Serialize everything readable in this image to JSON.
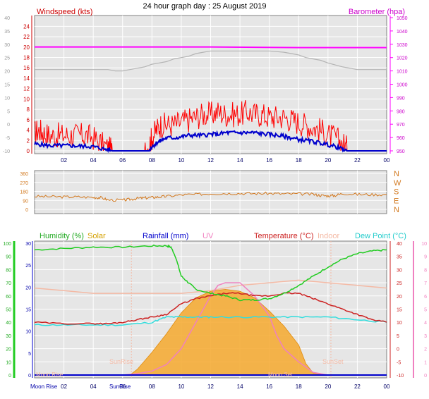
{
  "header_title": "24 hour graph day : 25 August 2019",
  "x_tick_labels": [
    "02",
    "04",
    "06",
    "08",
    "10",
    "12",
    "14",
    "16",
    "18",
    "20",
    "22",
    "00"
  ],
  "panel_wind": {
    "left_label": "Windspeed (kts)",
    "right_label": "Barometer (hpa)",
    "outer_ticks": [
      "40",
      "35",
      "30",
      "25",
      "20",
      "15",
      "10",
      "5",
      "0",
      "-5",
      "-10"
    ],
    "inner_ticks": [
      "24",
      "22",
      "20",
      "18",
      "16",
      "14",
      "12",
      "10",
      "8",
      "6",
      "4",
      "2",
      "0"
    ],
    "baro_ticks": [
      "1050",
      "1040",
      "1030",
      "1020",
      "1010",
      "1000",
      "990",
      "980",
      "970",
      "960",
      "950"
    ],
    "colors": {
      "wind_avg": "#0000cc",
      "wind_gust": "#ff0000",
      "barometer": "#ff00ff",
      "indoor_trace": "#b4b4b4"
    }
  },
  "panel_dir": {
    "left_ticks": [
      "360",
      "270",
      "180",
      "90",
      "0"
    ],
    "compass_labels": [
      "N",
      "W",
      "S",
      "E",
      "N"
    ],
    "colors": {
      "direction": "#d2781e",
      "compass": "#d2781e"
    }
  },
  "panel_temp": {
    "legend": {
      "humidity": "Humidity (%)",
      "solar": "Solar",
      "rainfall": "Rainfall (mm)",
      "uv": "UV",
      "temperature": "Temperature (°C)",
      "indoor": "Indoor",
      "dew_point": "Dew Point (°C)"
    },
    "humidity_ticks": [
      "100",
      "90",
      "80",
      "70",
      "60",
      "50",
      "40",
      "30",
      "20",
      "10",
      "0"
    ],
    "rain_ticks": [
      "30",
      "25",
      "20",
      "15",
      "10",
      "5",
      "0"
    ],
    "temp_ticks": [
      "40",
      "35",
      "30",
      "25",
      "20",
      "15",
      "10",
      "5",
      "0",
      "-5",
      "-10"
    ],
    "uv_ticks": [
      "10",
      "9",
      "8",
      "7",
      "6",
      "5",
      "4",
      "3",
      "2",
      "1",
      "0"
    ],
    "sun_rise": "SunRise",
    "sun_set": "SunSet",
    "moon_rise": "Moon Rise",
    "moon_set_top": "Moon Set",
    "moon_rise_bottom": "Moon Rise",
    "sun_rise_bottom": "SunRise",
    "colors": {
      "humidity": "#22cc22",
      "solar": "#f5a82d",
      "rainfall": "#0000cc",
      "uv": "#f080c0",
      "temperature": "#cc2020",
      "indoor": "#f4b9a4",
      "dew_point": "#33dddd"
    }
  },
  "chart_data": [
    {
      "type": "line",
      "title": "24 hour graph day : 25 August 2019",
      "ylabel": "Windspeed (kts)",
      "y2label": "Barometer (hpa)",
      "x_unit": "hour",
      "ylim": [
        0,
        25
      ],
      "y2lim": [
        950,
        1050
      ],
      "series": [
        {
          "name": "Windspeed (kts)",
          "role": "gust",
          "x": [
            0,
            0.3,
            0.6,
            1,
            1.5,
            2,
            2.5,
            3,
            3.5,
            4,
            4.5,
            5,
            5.3,
            5.5,
            6,
            7,
            7.5,
            7.8,
            8,
            8.3,
            8.6,
            9,
            9.5,
            10,
            10.5,
            11,
            11.5,
            12,
            12.5,
            13,
            13.5,
            14,
            14.5,
            15,
            15.5,
            16,
            16.5,
            17,
            17.5,
            18,
            18.5,
            19,
            19.5,
            20,
            20.5,
            21,
            21.3,
            21.5,
            22,
            23,
            24
          ],
          "values": [
            3.5,
            4,
            3.5,
            3,
            3,
            3,
            3,
            3,
            3,
            2.5,
            1.5,
            0.5,
            0,
            0,
            0,
            0,
            0,
            1,
            2.5,
            4,
            5,
            5,
            5,
            5.5,
            6,
            6.5,
            7,
            7,
            7.5,
            7,
            7,
            7,
            7.5,
            7,
            7,
            6.5,
            6.5,
            6.5,
            6,
            5.5,
            5,
            4.5,
            4,
            3,
            2.5,
            1.5,
            0.5,
            0,
            0,
            0,
            0
          ]
        },
        {
          "name": "",
          "role": "average",
          "x": [
            0,
            0.5,
            1,
            1.5,
            2,
            2.5,
            3,
            3.5,
            4,
            4.5,
            5,
            5.3,
            5.5,
            6,
            7,
            7.5,
            7.8,
            8,
            8.3,
            8.6,
            9,
            9.5,
            10,
            10.5,
            11,
            11.5,
            12,
            12.5,
            13,
            13.5,
            14,
            14.5,
            15,
            15.5,
            16,
            16.5,
            17,
            17.5,
            18,
            18.5,
            19,
            19.5,
            20,
            20.5,
            21,
            21.3,
            21.5,
            22,
            23,
            24
          ],
          "values": [
            1.3,
            1.2,
            1,
            1,
            1,
            1,
            0.9,
            0.9,
            0.8,
            0.5,
            0.2,
            0,
            0,
            0,
            0,
            0,
            0,
            0.8,
            1.5,
            2,
            2.5,
            2.5,
            2.7,
            3,
            3,
            3,
            3.2,
            3.2,
            3.5,
            3.5,
            3.5,
            3.5,
            3.5,
            3.3,
            3.2,
            3,
            2.8,
            2.5,
            2.2,
            2,
            1.8,
            1.5,
            1.2,
            0.8,
            0.3,
            0,
            0,
            0,
            0,
            0
          ]
        },
        {
          "name": "Barometer (hpa)",
          "axis": "right",
          "x": [
            0,
            6,
            12,
            18,
            24
          ],
          "values": [
            1028,
            1028,
            1028,
            1027.5,
            1027.5
          ]
        },
        {
          "name": "",
          "role": "grey",
          "x": [
            0,
            1,
            2,
            3,
            4,
            5,
            5.5,
            6,
            6.5,
            7,
            7.5,
            8,
            8.5,
            9,
            9.5,
            10,
            10.5,
            11,
            11.5,
            12,
            12.5,
            13,
            14,
            15,
            16,
            17,
            17.5,
            18,
            18.5,
            19,
            19.5,
            20,
            21,
            22,
            23,
            24
          ],
          "values": [
            1011,
            1011,
            1011,
            1011,
            1011,
            1011,
            1010,
            1010,
            1011,
            1012,
            1013,
            1015,
            1016,
            1017,
            1019,
            1020,
            1021,
            1023,
            1024,
            1025,
            1025,
            1025,
            1025,
            1025,
            1025,
            1024,
            1023,
            1022,
            1020,
            1019,
            1018,
            1016,
            1013,
            1011,
            1011,
            1011
          ]
        }
      ]
    },
    {
      "type": "scatter",
      "ylabel": "",
      "x_unit": "hour",
      "ylim": [
        0,
        360
      ],
      "series": [
        {
          "name": "",
          "x": [
            0,
            1,
            2,
            3,
            4,
            4.5,
            5,
            6,
            6.5,
            7,
            7.5,
            8,
            8.5,
            9,
            10,
            11,
            12,
            13,
            14,
            15,
            16,
            17,
            18,
            19,
            19.5,
            20,
            20.5,
            21,
            22,
            23,
            24
          ],
          "values": [
            130,
            128,
            125,
            125,
            120,
            118,
            95,
            92,
            100,
            110,
            115,
            120,
            125,
            130,
            145,
            150,
            158,
            160,
            160,
            158,
            160,
            155,
            155,
            150,
            140,
            135,
            140,
            160,
            150,
            148,
            148
          ]
        }
      ]
    },
    {
      "type": "line",
      "x_unit": "hour",
      "ylim": [
        -10,
        40
      ],
      "series": [
        {
          "name": "Humidity (%)",
          "axis": "humidity",
          "x": [
            0,
            2,
            4,
            6,
            8,
            9,
            9.3,
            9.6,
            10,
            10.5,
            11,
            12,
            13,
            14,
            15,
            16,
            17,
            18,
            19,
            20,
            21,
            22,
            23,
            24
          ],
          "values": [
            95,
            96,
            97,
            97,
            98,
            98,
            97,
            90,
            75,
            70,
            65,
            62,
            60,
            57,
            57,
            58,
            62,
            68,
            75,
            82,
            88,
            92,
            94,
            95
          ]
        },
        {
          "name": "Temperature (°C)",
          "x": [
            0,
            2,
            4,
            5,
            6,
            7,
            8,
            9,
            10,
            11,
            12,
            13,
            14,
            15,
            16,
            17,
            18,
            19,
            20,
            21,
            22,
            23,
            24
          ],
          "values": [
            10,
            9.5,
            9.5,
            9.5,
            10,
            11,
            12,
            13,
            17,
            19,
            20,
            21,
            21,
            20,
            20,
            21,
            21,
            19,
            17,
            15,
            13,
            11,
            10
          ]
        },
        {
          "name": "Dew Point (°C)",
          "x": [
            0,
            2,
            4,
            6,
            8,
            9,
            10,
            11,
            12,
            14,
            16,
            18,
            20,
            22,
            24
          ],
          "values": [
            9,
            9,
            9,
            9,
            10,
            12,
            12,
            12,
            12,
            12,
            12,
            12,
            12,
            11,
            10
          ]
        },
        {
          "name": "Indoor",
          "x": [
            0,
            2,
            4,
            6,
            8,
            10,
            12,
            14,
            16,
            18,
            20,
            22,
            24
          ],
          "values": [
            23,
            22,
            21,
            21,
            21,
            21,
            22,
            24,
            25,
            26,
            25,
            24,
            23
          ]
        },
        {
          "name": "UV",
          "axis": "uv",
          "x": [
            6,
            7,
            8,
            9,
            10,
            11,
            12,
            12.5,
            13,
            14,
            15,
            16,
            16.5,
            17,
            18,
            19,
            20
          ],
          "values": [
            0,
            0.1,
            0.3,
            0.8,
            2,
            4,
            6,
            6.8,
            7,
            7,
            6,
            4.5,
            3,
            2,
            1,
            0.2,
            0
          ]
        },
        {
          "name": "Solar",
          "axis": "solar",
          "x": [
            6.5,
            7,
            8,
            9,
            10,
            11,
            12,
            13,
            14,
            15,
            16,
            17,
            18,
            18.5,
            19,
            20
          ],
          "values": [
            0,
            30,
            120,
            220,
            330,
            410,
            445,
            455,
            445,
            410,
            340,
            260,
            160,
            60,
            10,
            0
          ]
        },
        {
          "name": "Rainfall (mm)",
          "axis": "rain",
          "x": [
            0,
            24
          ],
          "values": [
            0,
            0
          ]
        }
      ]
    }
  ]
}
